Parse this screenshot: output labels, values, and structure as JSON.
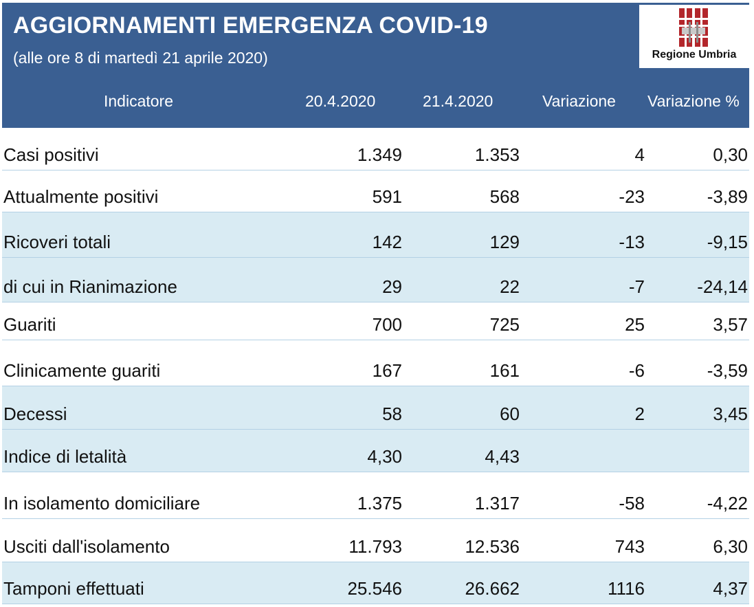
{
  "header": {
    "title": "AGGIORNAMENTI EMERGENZA COVID-19",
    "subtitle": "(alle ore 8 di martedì 21 aprile 2020)",
    "logo_text": "Regione Umbria",
    "background_color": "#3a5f92",
    "logo_icon": "regione-umbria-logo"
  },
  "table": {
    "columns": [
      "Indicatore",
      "20.4.2020",
      "21.4.2020",
      "Variazione",
      "Variazione %"
    ],
    "rows": [
      {
        "indicator": "Casi positivi",
        "d1": "1.349",
        "d2": "1.353",
        "var": "4",
        "varp": "0,30"
      },
      {
        "indicator": "Attualmente positivi",
        "d1": "591",
        "d2": "568",
        "var": "-23",
        "varp": "-3,89"
      },
      {
        "indicator": "Ricoveri totali",
        "d1": "142",
        "d2": "129",
        "var": "-13",
        "varp": "-9,15"
      },
      {
        "indicator": "di cui in Rianimazione",
        "d1": "29",
        "d2": "22",
        "var": "-7",
        "varp": "-24,14"
      },
      {
        "indicator": "Guariti",
        "d1": "700",
        "d2": "725",
        "var": "25",
        "varp": "3,57"
      },
      {
        "indicator": "Clinicamente guariti",
        "d1": "167",
        "d2": "161",
        "var": "-6",
        "varp": "-3,59"
      },
      {
        "indicator": "Decessi",
        "d1": "58",
        "d2": "60",
        "var": "2",
        "varp": "3,45"
      },
      {
        "indicator": "Indice di letalità",
        "d1": "4,30",
        "d2": "4,43",
        "var": "",
        "varp": ""
      },
      {
        "indicator": "In isolamento domiciliare",
        "d1": "1.375",
        "d2": "1.317",
        "var": "-58",
        "varp": "-4,22"
      },
      {
        "indicator": "Usciti dall'isolamento",
        "d1": "11.793",
        "d2": "12.536",
        "var": "743",
        "varp": "6,30"
      },
      {
        "indicator": "Tamponi effettuati",
        "d1": "25.546",
        "d2": "26.662",
        "var": "1116",
        "varp": "4,37"
      }
    ]
  }
}
